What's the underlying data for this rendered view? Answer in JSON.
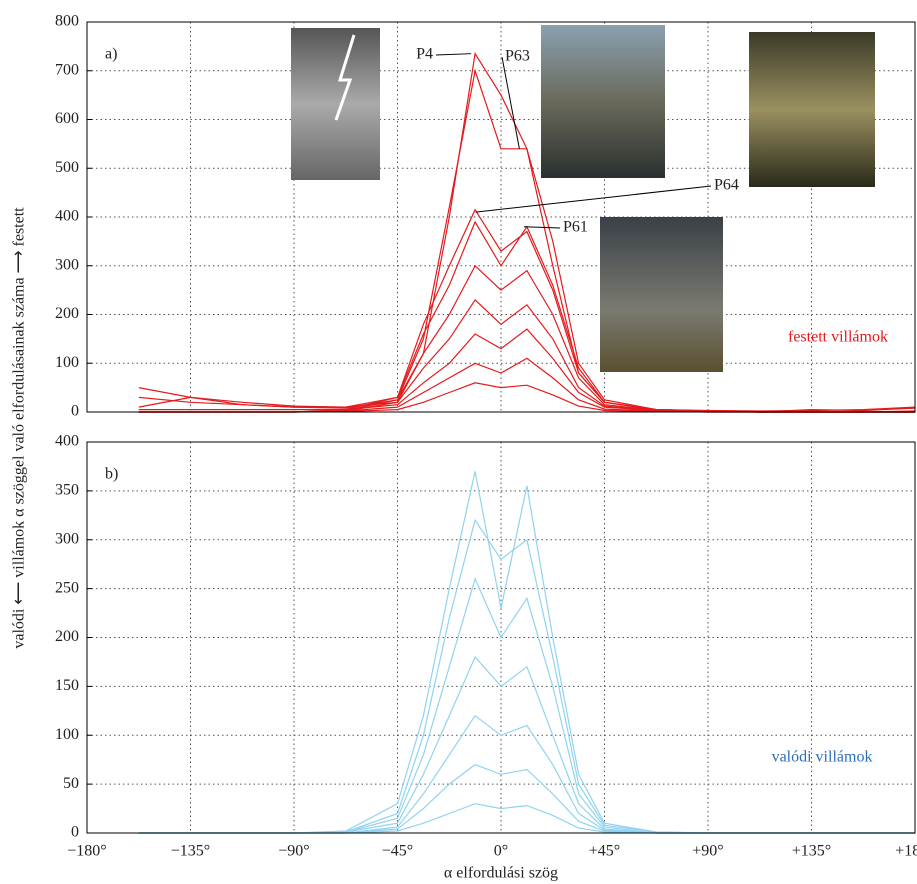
{
  "chart_data": [
    {
      "type": "line",
      "panel_label": "a)",
      "annotation": "festett villámok",
      "x": [
        -157.5,
        -135,
        -112.5,
        -90,
        -67.5,
        -45,
        -33.75,
        -22.5,
        -11.25,
        0,
        11.25,
        22.5,
        33.75,
        45,
        67.5,
        90,
        112.5,
        135,
        157.5,
        180
      ],
      "xlim": [
        -180,
        180
      ],
      "xticks": [
        -180,
        -135,
        -90,
        -45,
        0,
        45,
        90,
        135,
        180
      ],
      "ylim": [
        0,
        800
      ],
      "yticks": [
        0,
        100,
        200,
        300,
        400,
        500,
        600,
        700,
        800
      ],
      "grid": true,
      "color": "#e41a1c",
      "labels": [
        {
          "text": "P4",
          "x": -13,
          "y": 735
        },
        {
          "text": "P63",
          "x": 8,
          "y": 540
        },
        {
          "text": "P64",
          "x": -11,
          "y": 410
        },
        {
          "text": "P61",
          "x": 10,
          "y": 380
        }
      ],
      "series": [
        {
          "values": [
            0,
            0,
            0,
            0,
            2,
            20,
            120,
            400,
            735,
            650,
            540,
            300,
            80,
            20,
            5,
            2,
            0,
            0,
            0,
            0
          ]
        },
        {
          "values": [
            0,
            0,
            0,
            0,
            3,
            25,
            150,
            420,
            700,
            540,
            540,
            350,
            100,
            25,
            5,
            2,
            0,
            0,
            0,
            0
          ]
        },
        {
          "values": [
            50,
            30,
            15,
            10,
            10,
            30,
            180,
            300,
            415,
            330,
            370,
            250,
            80,
            20,
            5,
            3,
            2,
            3,
            5,
            10
          ]
        },
        {
          "values": [
            0,
            0,
            0,
            0,
            5,
            30,
            160,
            260,
            390,
            300,
            380,
            260,
            90,
            20,
            5,
            2,
            0,
            0,
            0,
            0
          ]
        },
        {
          "values": [
            30,
            20,
            15,
            10,
            8,
            25,
            120,
            200,
            300,
            250,
            290,
            200,
            70,
            15,
            4,
            2,
            0,
            5,
            3,
            8
          ]
        },
        {
          "values": [
            10,
            30,
            20,
            12,
            10,
            20,
            90,
            150,
            230,
            180,
            220,
            150,
            50,
            12,
            3,
            1,
            0,
            0,
            0,
            2
          ]
        },
        {
          "values": [
            5,
            5,
            5,
            5,
            5,
            15,
            60,
            100,
            160,
            130,
            170,
            110,
            40,
            10,
            3,
            1,
            0,
            0,
            0,
            0
          ]
        },
        {
          "values": [
            0,
            0,
            0,
            0,
            2,
            10,
            40,
            70,
            100,
            80,
            110,
            70,
            25,
            6,
            2,
            0,
            0,
            0,
            0,
            0
          ]
        },
        {
          "values": [
            0,
            0,
            0,
            0,
            1,
            5,
            20,
            40,
            60,
            50,
            55,
            35,
            12,
            3,
            1,
            0,
            0,
            0,
            0,
            0
          ]
        }
      ]
    },
    {
      "type": "line",
      "panel_label": "b)",
      "annotation": "valódi villámok",
      "x": [
        -157.5,
        -135,
        -112.5,
        -90,
        -67.5,
        -45,
        -33.75,
        -22.5,
        -11.25,
        0,
        11.25,
        22.5,
        33.75,
        45,
        67.5,
        90,
        112.5,
        135,
        157.5,
        180
      ],
      "xlim": [
        -180,
        180
      ],
      "xticks": [
        {
          "value": -180,
          "label": "−180°"
        },
        {
          "value": -135,
          "label": "−135°"
        },
        {
          "value": -90,
          "label": "−90°"
        },
        {
          "value": -45,
          "label": "−45°"
        },
        {
          "value": 0,
          "label": "0°"
        },
        {
          "value": 45,
          "label": "+45°"
        },
        {
          "value": 90,
          "label": "+90°"
        },
        {
          "value": 135,
          "label": "+135°"
        },
        {
          "value": 180,
          "label": "+180°"
        }
      ],
      "ylim": [
        0,
        400
      ],
      "yticks": [
        0,
        50,
        100,
        150,
        200,
        250,
        300,
        350,
        400
      ],
      "grid": true,
      "color": "#8fd3f0",
      "xlabel": "α elfordulási szög",
      "ylabel": "valódi ⟵ villámok α szöggel való elfordulásainak száma ⟶ festett",
      "series": [
        {
          "values": [
            0,
            0,
            0,
            0,
            2,
            30,
            120,
            250,
            370,
            230,
            355,
            200,
            60,
            10,
            1,
            0,
            0,
            0,
            0,
            0
          ]
        },
        {
          "values": [
            0,
            0,
            0,
            0,
            1,
            20,
            100,
            220,
            320,
            280,
            300,
            180,
            50,
            8,
            1,
            0,
            0,
            0,
            0,
            0
          ]
        },
        {
          "values": [
            0,
            0,
            0,
            0,
            1,
            15,
            80,
            170,
            260,
            200,
            240,
            150,
            40,
            6,
            0,
            0,
            0,
            0,
            0,
            0
          ]
        },
        {
          "values": [
            0,
            0,
            0,
            0,
            1,
            10,
            60,
            120,
            180,
            150,
            170,
            100,
            30,
            4,
            0,
            0,
            0,
            0,
            0,
            0
          ]
        },
        {
          "values": [
            0,
            0,
            0,
            0,
            0,
            6,
            40,
            80,
            120,
            100,
            110,
            70,
            20,
            3,
            0,
            0,
            0,
            0,
            0,
            0
          ]
        },
        {
          "values": [
            0,
            0,
            0,
            0,
            0,
            4,
            25,
            50,
            70,
            60,
            65,
            40,
            12,
            2,
            0,
            0,
            0,
            0,
            0,
            0
          ]
        },
        {
          "values": [
            0,
            0,
            0,
            0,
            0,
            2,
            10,
            20,
            30,
            25,
            28,
            18,
            5,
            1,
            0,
            0,
            0,
            0,
            0,
            0
          ]
        }
      ]
    }
  ]
}
